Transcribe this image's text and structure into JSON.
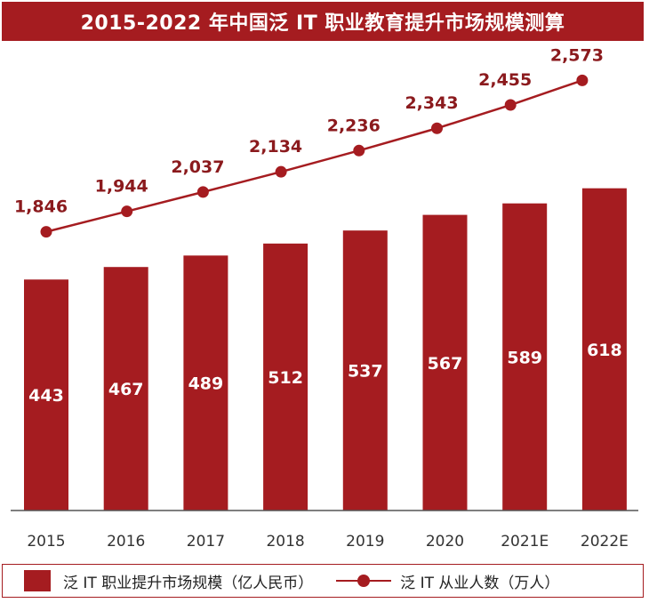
{
  "title": "2015-2022 年中国泛 IT 职业教育提升市场规模测算",
  "colors": {
    "bar": "#a51c20",
    "line": "#a51c20",
    "line_label": "#8b1a1d",
    "axis_text": "#333333",
    "title_bg": "#a51c20"
  },
  "legend": {
    "bar_label": "泛 IT 职业提升市场规模（亿人民币）",
    "line_label": "泛 IT 从业人数（万人）"
  },
  "chart_data": {
    "type": "bar+line",
    "title": "2015-2022 年中国泛 IT 职业教育提升市场规模测算",
    "categories": [
      "2015",
      "2016",
      "2017",
      "2018",
      "2019",
      "2020",
      "2021E",
      "2022E"
    ],
    "series": [
      {
        "name": "泛 IT 职业提升市场规模（亿人民币）",
        "type": "bar",
        "values": [
          443,
          467,
          489,
          512,
          537,
          567,
          589,
          618
        ],
        "labels": [
          "443",
          "467",
          "489",
          "512",
          "537",
          "567",
          "589",
          "618"
        ]
      },
      {
        "name": "泛 IT 从业人数（万人）",
        "type": "line",
        "values": [
          1846,
          1944,
          2037,
          2134,
          2236,
          2343,
          2455,
          2573
        ],
        "labels": [
          "1,846",
          "1,944",
          "2,037",
          "2,134",
          "2,236",
          "2,343",
          "2,455",
          "2,573"
        ]
      }
    ],
    "bar_axis_range": [
      0,
      655
    ],
    "line_axis_range": [
      1050,
      2690
    ],
    "grid": false,
    "legend_position": "bottom"
  }
}
